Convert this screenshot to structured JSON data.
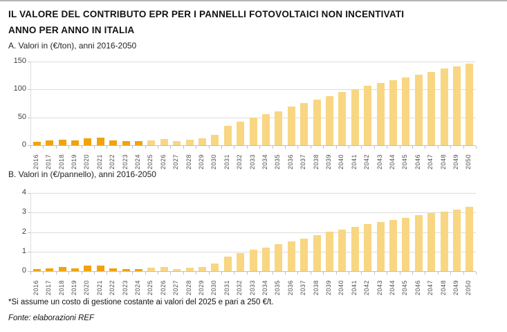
{
  "header": {
    "title_line1": "IL VALORE DEL CONTRIBUTO EPR PER I PANNELLI FOTOVOLTAICI NON INCENTIVATI",
    "title_line2": "ANNO PER ANNO IN ITALIA"
  },
  "footnote": "*Si assume un costo di gestione costante ai valori del 2025 e pari a 250 €/t.",
  "source": "Fonte: elaborazioni REF",
  "colors": {
    "bar_historical": "#F0A30A",
    "bar_projection": "#F8D682",
    "gridline": "#DCDCDC",
    "axis": "#C0C0C0",
    "title_text": "#111111",
    "label_text": "#4D4D4D"
  },
  "chart_data": [
    {
      "id": "A",
      "type": "bar",
      "title": "A. Valori in (€/ton), anni 2016-2050",
      "unit": "€/ton",
      "categories": [
        "2016",
        "2017",
        "2018",
        "2019",
        "2020",
        "2021",
        "2022",
        "2023",
        "2024",
        "2025",
        "2026",
        "2027",
        "2028",
        "2029",
        "2030",
        "2031",
        "2032",
        "2033",
        "2034",
        "2035",
        "2036",
        "2037",
        "2038",
        "2039",
        "2040",
        "2041",
        "2042",
        "2043",
        "2044",
        "2045",
        "2046",
        "2047",
        "2048",
        "2049",
        "2050"
      ],
      "values": [
        6,
        9,
        10,
        9,
        13,
        14,
        9,
        7,
        7,
        9,
        11,
        7,
        10,
        13,
        18,
        35,
        42,
        50,
        56,
        61,
        69,
        76,
        82,
        88,
        95,
        101,
        106,
        112,
        116,
        122,
        127,
        132,
        137,
        141,
        146
      ],
      "ylim": [
        0,
        150
      ],
      "yticks": [
        0,
        50,
        100,
        150
      ],
      "grid": true,
      "legend": "none",
      "color_rule": {
        "historical_through_year": 2024
      }
    },
    {
      "id": "B",
      "type": "bar",
      "title": "B. Valori in (€/pannello), anni 2016-2050",
      "unit": "€/pannello",
      "categories": [
        "2016",
        "2017",
        "2018",
        "2019",
        "2020",
        "2021",
        "2022",
        "2023",
        "2024",
        "2025",
        "2026",
        "2027",
        "2028",
        "2029",
        "2030",
        "2031",
        "2032",
        "2033",
        "2034",
        "2035",
        "2036",
        "2037",
        "2038",
        "2039",
        "2040",
        "2041",
        "2042",
        "2043",
        "2044",
        "2045",
        "2046",
        "2047",
        "2048",
        "2049",
        "2050"
      ],
      "values": [
        0.12,
        0.15,
        0.2,
        0.15,
        0.27,
        0.3,
        0.15,
        0.1,
        0.12,
        0.16,
        0.2,
        0.12,
        0.16,
        0.22,
        0.38,
        0.75,
        0.92,
        1.1,
        1.21,
        1.37,
        1.52,
        1.68,
        1.85,
        2.0,
        2.14,
        2.27,
        2.4,
        2.52,
        2.62,
        2.74,
        2.85,
        2.96,
        3.05,
        3.15,
        3.28
      ],
      "ylim": [
        0,
        4
      ],
      "yticks": [
        0,
        1,
        2,
        3,
        4
      ],
      "grid": true,
      "legend": "none",
      "color_rule": {
        "historical_through_year": 2024
      }
    }
  ]
}
